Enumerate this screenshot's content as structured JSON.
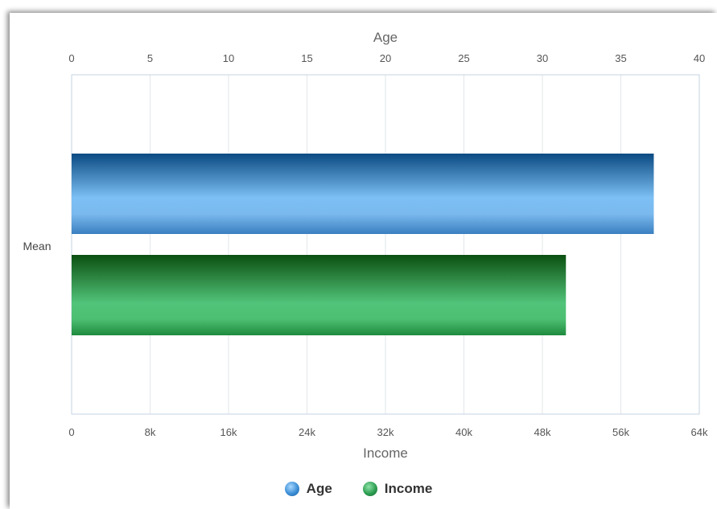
{
  "chart_data": {
    "type": "bar",
    "orientation": "horizontal",
    "categories": [
      "Mean"
    ],
    "series": [
      {
        "name": "Age",
        "values": [
          37.1
        ],
        "axis": "top",
        "color": "#3d8fd6",
        "legend_icon": "blue-circle"
      },
      {
        "name": "Income",
        "values": [
          50400
        ],
        "axis": "bottom",
        "color": "#2e9e52",
        "legend_icon": "green-circle"
      }
    ],
    "axes": {
      "top": {
        "label": "Age",
        "range": [
          0,
          40
        ],
        "ticks": [
          0,
          5,
          10,
          15,
          20,
          25,
          30,
          35,
          40
        ],
        "tick_labels": [
          "0",
          "5",
          "10",
          "15",
          "20",
          "25",
          "30",
          "35",
          "40"
        ]
      },
      "bottom": {
        "label": "Income",
        "range": [
          0,
          64000
        ],
        "ticks": [
          0,
          8000,
          16000,
          24000,
          32000,
          40000,
          48000,
          56000,
          64000
        ],
        "tick_labels": [
          "0",
          "8k",
          "16k",
          "24k",
          "32k",
          "40k",
          "48k",
          "56k",
          "64k"
        ]
      }
    },
    "grid": true,
    "legend_position": "bottom-center",
    "title": "",
    "xlabel": "Income",
    "ylabel": ""
  },
  "legend": {
    "items": [
      {
        "label": "Age"
      },
      {
        "label": "Income"
      }
    ]
  }
}
